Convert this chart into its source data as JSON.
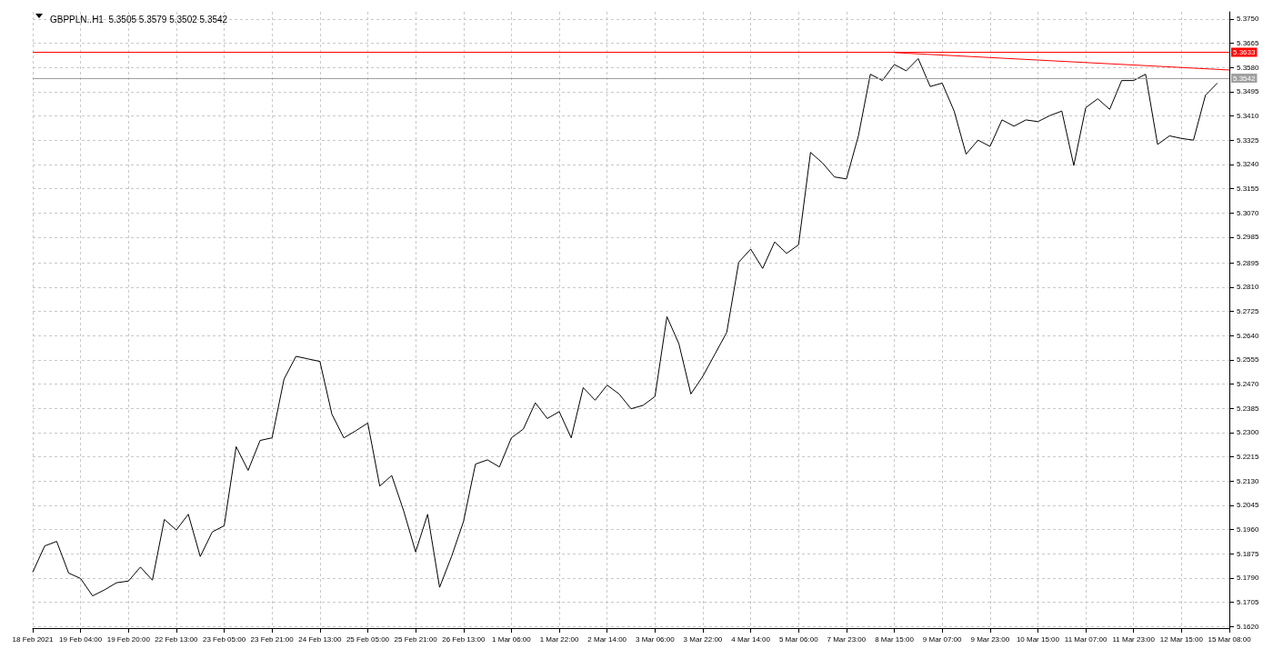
{
  "chart_data": {
    "type": "line",
    "title": "GBPPLN..H1  5.3505 5.3579 5.3502 5.3542",
    "categories": [
      "18 Feb 2021",
      null,
      null,
      null,
      "19 Feb 04:00",
      null,
      null,
      null,
      "19 Feb 20:00",
      null,
      null,
      null,
      "22 Feb 13:00",
      null,
      null,
      null,
      "23 Feb 05:00",
      null,
      null,
      null,
      "23 Feb 21:00",
      null,
      null,
      null,
      "24 Feb 13:00",
      null,
      null,
      null,
      "25 Feb 05:00",
      null,
      null,
      null,
      "25 Feb 21:00",
      null,
      null,
      null,
      "26 Feb 13:00",
      null,
      null,
      null,
      "1 Mar 06:00",
      null,
      null,
      null,
      "1 Mar 22:00",
      null,
      null,
      null,
      "2 Mar 14:00",
      null,
      null,
      null,
      "3 Mar 06:00",
      null,
      null,
      null,
      "3 Mar 22:00",
      null,
      null,
      null,
      "4 Mar 14:00",
      null,
      null,
      null,
      "5 Mar 06:00",
      null,
      null,
      null,
      "7 Mar 23:00",
      null,
      null,
      null,
      "8 Mar 15:00",
      null,
      null,
      null,
      "9 Mar 07:00",
      null,
      null,
      null,
      "9 Mar 23:00",
      null,
      null,
      null,
      "10 Mar 15:00",
      null,
      null,
      null,
      "11 Mar 07:00",
      null,
      null,
      null,
      "11 Mar 23:00",
      null,
      null,
      null,
      "12 Mar 15:00",
      null,
      null,
      null,
      "15 Mar 08:00"
    ],
    "series": [
      {
        "color": "#000000",
        "values": [
          5.181,
          5.1902,
          5.1918,
          5.1807,
          5.1788,
          5.1727,
          5.1748,
          5.1773,
          5.1779,
          5.1828,
          5.1782,
          5.1995,
          5.1958,
          5.2013,
          5.1865,
          5.1951,
          5.1973,
          5.225,
          5.2167,
          5.2272,
          5.2281,
          5.2487,
          5.2567,
          5.2558,
          5.2549,
          5.2364,
          5.2281,
          5.2306,
          5.2333,
          5.2112,
          5.2149,
          5.2025,
          5.1881,
          5.2013,
          5.1757,
          5.1865,
          5.1988,
          5.2189,
          5.2204,
          5.2179,
          5.2281,
          5.2312,
          5.2404,
          5.2349,
          5.2373,
          5.2281,
          5.2457,
          5.2413,
          5.2466,
          5.2435,
          5.2383,
          5.2395,
          5.2426,
          5.2706,
          5.2611,
          5.2435,
          5.2497,
          5.2574,
          5.2651,
          5.2897,
          5.2943,
          5.2875,
          5.2968,
          5.2928,
          5.2958,
          5.3282,
          5.3245,
          5.3196,
          5.3189,
          5.334,
          5.3556,
          5.3534,
          5.359,
          5.3568,
          5.3611,
          5.3513,
          5.3525,
          5.3427,
          5.3276,
          5.3325,
          5.3303,
          5.3396,
          5.3374,
          5.3396,
          5.339,
          5.3411,
          5.3427,
          5.3236,
          5.3439,
          5.347,
          5.3433,
          5.3534,
          5.3534,
          5.3556,
          5.331,
          5.334,
          5.3331,
          5.3325,
          5.3482,
          5.3525,
          null
        ]
      },
      {
        "type": "line",
        "color": "#ff0000",
        "x": [
          "8 Mar 15:00",
          "15 Mar 08:00"
        ],
        "values": [
          5.3632,
          5.3571
        ]
      }
    ],
    "ylim": [
      5.1614,
      5.3775
    ],
    "yticks": [
      {
        "value": 5.375,
        "label": "5.3750"
      },
      {
        "value": 5.3665,
        "label": "5.3665"
      },
      {
        "value": 5.358,
        "label": "5.3580"
      },
      {
        "value": 5.3495,
        "label": "5.3495"
      },
      {
        "value": 5.341,
        "label": "5.3410"
      },
      {
        "value": 5.3325,
        "label": "5.3325"
      },
      {
        "value": 5.324,
        "label": "5.3240"
      },
      {
        "value": 5.3155,
        "label": "5.3155"
      },
      {
        "value": 5.307,
        "label": "5.3070"
      },
      {
        "value": 5.2985,
        "label": "5.2985"
      },
      {
        "value": 5.2895,
        "label": "5.2895"
      },
      {
        "value": 5.281,
        "label": "5.2810"
      },
      {
        "value": 5.2725,
        "label": "5.2725"
      },
      {
        "value": 5.264,
        "label": "5.2640"
      },
      {
        "value": 5.2555,
        "label": "5.2555"
      },
      {
        "value": 5.247,
        "label": "5.2470"
      },
      {
        "value": 5.2385,
        "label": "5.2385"
      },
      {
        "value": 5.23,
        "label": "5.2300"
      },
      {
        "value": 5.2215,
        "label": "5.2215"
      },
      {
        "value": 5.213,
        "label": "5.2130"
      },
      {
        "value": 5.2045,
        "label": "5.2045"
      },
      {
        "value": 5.196,
        "label": "5.1960"
      },
      {
        "value": 5.1875,
        "label": "5.1875"
      },
      {
        "value": 5.179,
        "label": "5.1790"
      },
      {
        "value": 5.1705,
        "label": "5.1705"
      },
      {
        "value": 5.162,
        "label": "5.1620"
      }
    ],
    "ref_lines": [
      {
        "axis": "y",
        "value": 5.3633,
        "label": "5.3633",
        "color": "#ff0000",
        "line_style": "solid"
      },
      {
        "axis": "y",
        "value": 5.3542,
        "label": "5.3542",
        "color": "#a0a0a0",
        "line_style": "solid"
      }
    ],
    "grid": true,
    "marker": "none",
    "line_style": "solid"
  }
}
